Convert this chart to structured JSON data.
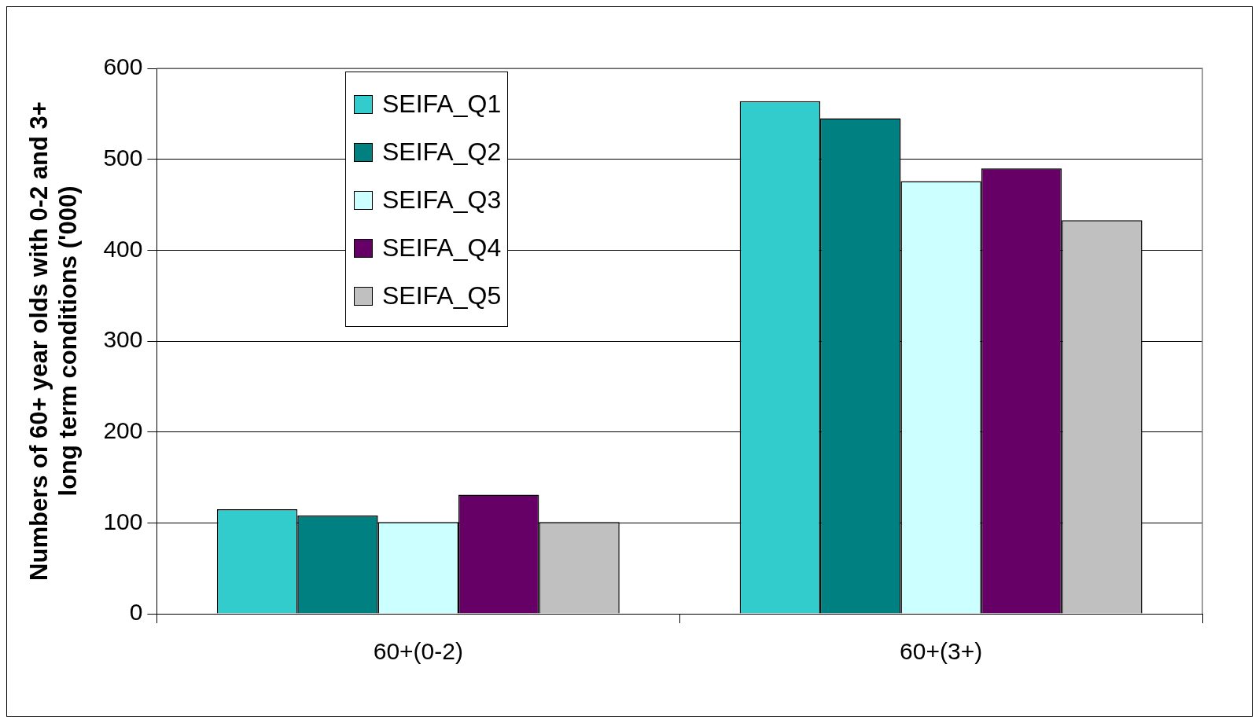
{
  "chart_data": {
    "type": "bar",
    "ylabel": "Numbers of 60+ year olds with 0-2 and 3+ long term conditions ('000)",
    "categories": [
      "60+(0-2)",
      "60+(3+)"
    ],
    "series": [
      {
        "name": "SEIFA_Q1",
        "color": "#33cccc",
        "values": [
          115,
          564
        ]
      },
      {
        "name": "SEIFA_Q2",
        "color": "#008080",
        "values": [
          108,
          545
        ]
      },
      {
        "name": "SEIFA_Q3",
        "color": "#ccffff",
        "values": [
          101,
          476
        ]
      },
      {
        "name": "SEIFA_Q4",
        "color": "#660066",
        "values": [
          131,
          490
        ]
      },
      {
        "name": "SEIFA_Q5",
        "color": "#c0c0c0",
        "values": [
          101,
          433
        ]
      }
    ],
    "ylim": [
      0,
      600
    ],
    "yticks": [
      0,
      100,
      200,
      300,
      400,
      500,
      600
    ],
    "grid": "y",
    "legend": "top left"
  }
}
